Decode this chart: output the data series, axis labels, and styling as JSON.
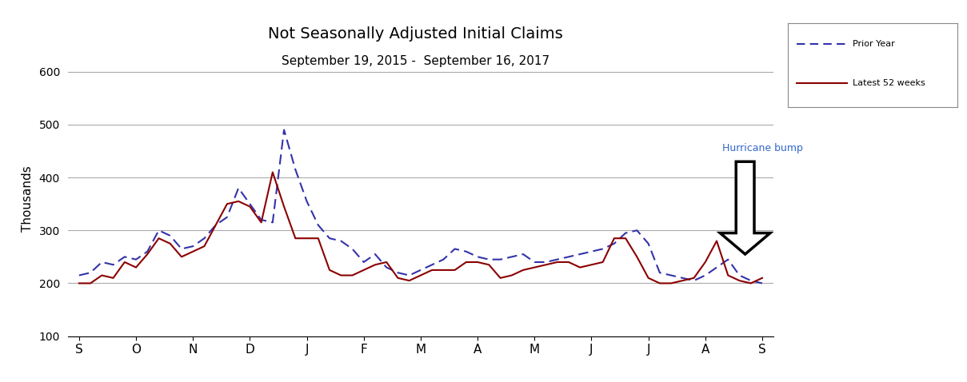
{
  "title": "Not Seasonally Adjusted Initial Claims",
  "subtitle": "September 19, 2015 -  September 16, 2017",
  "ylabel": "Thousands",
  "xlabel_ticks": [
    "S",
    "O",
    "N",
    "D",
    "J",
    "F",
    "M",
    "A",
    "M",
    "J",
    "J",
    "A",
    "S"
  ],
  "ylim": [
    100,
    620
  ],
  "yticks": [
    100,
    200,
    300,
    400,
    500,
    600
  ],
  "prior_year_color": "#3333AA",
  "latest_color": "#8B0000",
  "prior_year_label": "Prior Year",
  "latest_label": "Latest 52 weeks",
  "background_color": "#FFFFFF",
  "prior_year": [
    215,
    220,
    240,
    235,
    250,
    245,
    260,
    300,
    290,
    265,
    270,
    285,
    310,
    325,
    380,
    350,
    320,
    315,
    490,
    415,
    355,
    310,
    285,
    280,
    265,
    240,
    255,
    230,
    220,
    215,
    225,
    235,
    245,
    265,
    260,
    250,
    245,
    245,
    250,
    255,
    240,
    240,
    245,
    250,
    255,
    260,
    265,
    275,
    295,
    300,
    275,
    220,
    215,
    210,
    205,
    215,
    230,
    245,
    215,
    205,
    200
  ],
  "latest_52": [
    200,
    200,
    215,
    210,
    240,
    230,
    255,
    285,
    275,
    250,
    260,
    270,
    310,
    350,
    355,
    345,
    315,
    410,
    345,
    285,
    285,
    285,
    225,
    215,
    215,
    225,
    235,
    240,
    210,
    205,
    215,
    225,
    225,
    225,
    240,
    240,
    235,
    210,
    215,
    225,
    230,
    235,
    240,
    240,
    230,
    235,
    240,
    285,
    285,
    250,
    210,
    200,
    200,
    205,
    210,
    240,
    280,
    215,
    205,
    200,
    210
  ],
  "annotation_text": "Hurricane bump",
  "annotation_color": "#3366CC",
  "arrow_color": "#000000"
}
